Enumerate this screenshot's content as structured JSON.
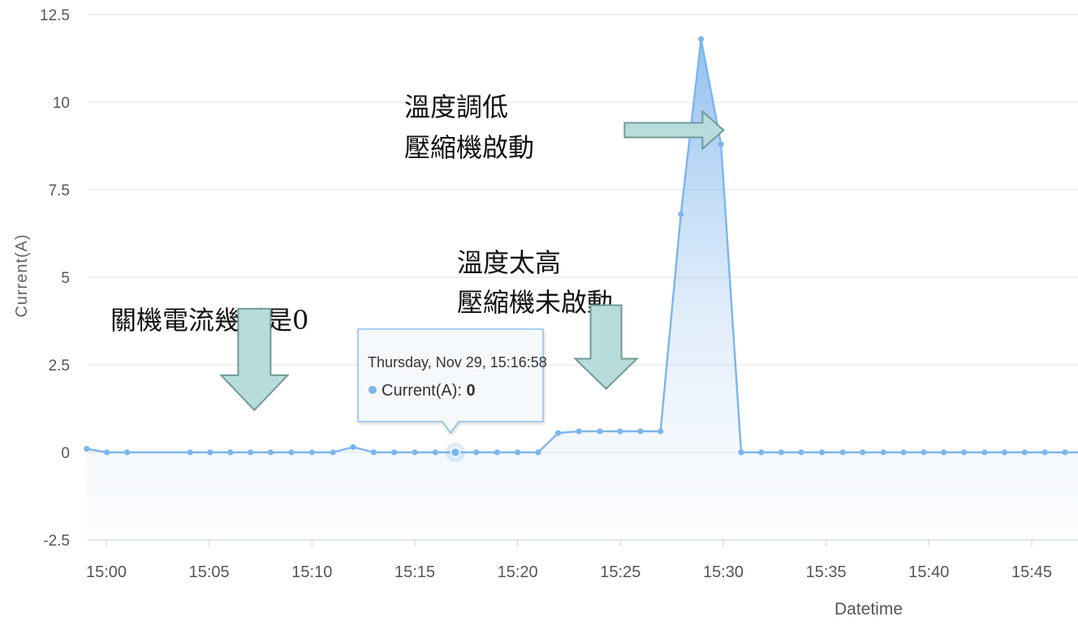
{
  "chart_data": {
    "type": "area",
    "title": "",
    "xlabel": "Datetime",
    "ylabel": "Current(A)",
    "ylim": [
      -2.5,
      12.5
    ],
    "yticks": [
      "12.5",
      "10",
      "7.5",
      "5",
      "2.5",
      "0",
      "-2.5"
    ],
    "ytick_values": [
      12.5,
      10,
      7.5,
      5,
      2.5,
      0,
      -2.5
    ],
    "xticks": [
      "15:00",
      "15:05",
      "15:10",
      "15:15",
      "15:20",
      "15:25",
      "15:30",
      "15:35",
      "15:40",
      "15:45"
    ],
    "xtick_minutes": [
      0,
      5,
      10,
      15,
      20,
      25,
      30,
      35,
      40,
      45
    ],
    "xlim_minutes": [
      -1,
      48.8
    ],
    "grid": true,
    "legend": "none",
    "series": [
      {
        "name": "Current(A)",
        "color": "#7cb5ec",
        "x_minutes": [
          -0.95,
          0.03,
          1.01,
          4.07,
          5.05,
          6.03,
          7.01,
          7.99,
          9.0,
          10.0,
          11.02,
          12.0,
          13.0,
          14.0,
          15.0,
          16.0,
          16.97,
          17.99,
          19.0,
          20.0,
          21.0,
          21.97,
          22.98,
          24.0,
          24.99,
          25.97,
          26.95,
          27.94,
          28.92,
          29.89,
          30.87,
          31.85,
          32.82,
          33.79,
          34.8,
          35.81,
          36.78,
          37.79,
          38.77,
          39.75,
          40.72,
          41.7,
          42.71,
          43.68,
          44.66,
          45.64,
          46.62,
          47.6,
          48.78
        ],
        "values": [
          0.1,
          0,
          0,
          0,
          0,
          0,
          0,
          0,
          0,
          0,
          0,
          0.15,
          0,
          0,
          0,
          0,
          0,
          0,
          0,
          0,
          0,
          0.55,
          0.6,
          0.6,
          0.6,
          0.6,
          0.6,
          6.8,
          11.8,
          8.8,
          0,
          0,
          0,
          0,
          0,
          0,
          0,
          0,
          0,
          0,
          0,
          0,
          0,
          0,
          0,
          0,
          0,
          0,
          0
        ]
      }
    ],
    "tooltip": {
      "header": "Thursday, Nov 29, 15:16:58",
      "series_label": "Current(A)",
      "value": "0",
      "x_minute": 16.97
    },
    "annotations": [
      {
        "lines": [
          "關機電流幾乎是0"
        ],
        "arrow": "down",
        "x_minute": 7.2,
        "y_value": 4.1
      },
      {
        "lines": [
          "溫度太高",
          "壓縮機未啟動"
        ],
        "arrow": "down",
        "x_minute": 24.3,
        "y_value": 4.2
      },
      {
        "lines": [
          "溫度調低",
          "壓縮機啟動"
        ],
        "arrow": "right",
        "x_minute": 25.2,
        "y_value": 9.2
      }
    ]
  }
}
